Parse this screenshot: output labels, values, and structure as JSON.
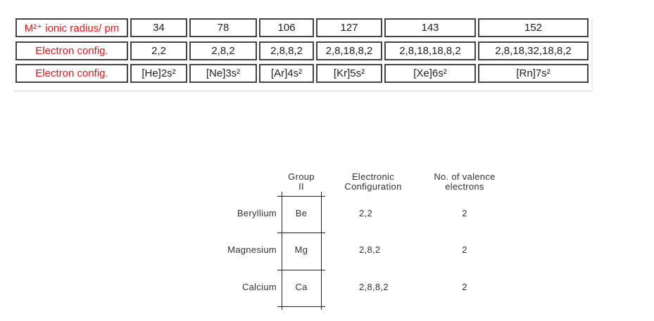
{
  "radius_table": {
    "rows": [
      {
        "label": "M²⁺ ionic radius/ pm",
        "values": [
          "34",
          "78",
          "106",
          "127",
          "143",
          "152"
        ]
      },
      {
        "label": "Electron config.",
        "values": [
          "2,2",
          "2,8,2",
          "2,8,8,2",
          "2,8,18,8,2",
          "2,8,18,18,8,2",
          "2,8,18,32,18,8,2"
        ]
      },
      {
        "label": "Electron config.",
        "values": [
          "[He]2s²",
          "[Ne]3s²",
          "[Ar]4s²",
          "[Kr]5s²",
          "[Xe]6s²",
          "[Rn]7s²"
        ]
      }
    ],
    "label_color": "#f01010"
  },
  "group_table": {
    "headers": {
      "group_line1": "Group",
      "group_line2": "II",
      "config_line1": "Electronic",
      "config_line2": "Configuration",
      "valence_line1": "No. of valence",
      "valence_line2": "electrons"
    },
    "rows": [
      {
        "name": "Beryllium",
        "symbol": "Be",
        "config": "2,2",
        "valence": "2"
      },
      {
        "name": "Magnesium",
        "symbol": "Mg",
        "config": "2,8,2",
        "valence": "2"
      },
      {
        "name": "Calcium",
        "symbol": "Ca",
        "config": "2,8,8,2",
        "valence": "2"
      }
    ]
  }
}
